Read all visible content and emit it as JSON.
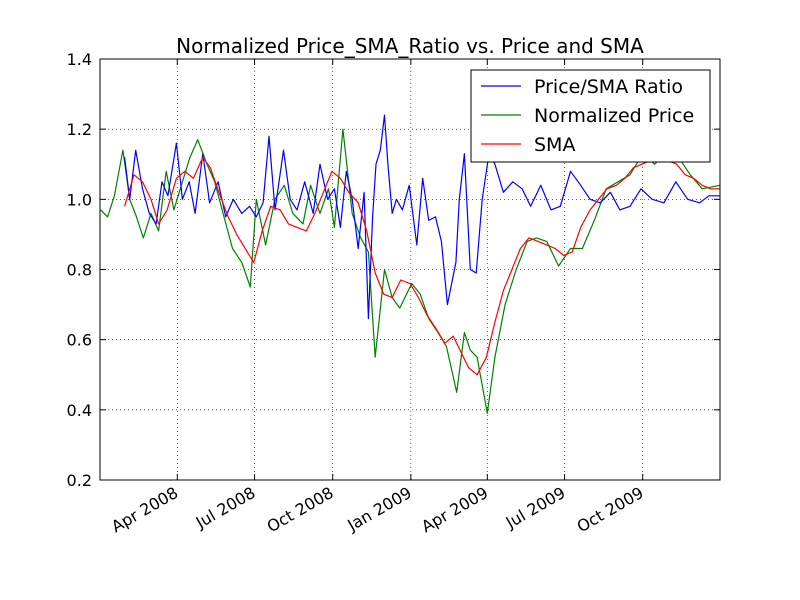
{
  "chart_data": {
    "type": "line",
    "title": "Normalized Price_SMA_Ratio vs. Price and SMA",
    "xlabel": "",
    "ylabel": "",
    "xlim": [
      "2008-01-01",
      "2009-12-31"
    ],
    "ylim": [
      0.2,
      1.4
    ],
    "y_ticks": [
      "0.2",
      "0.4",
      "0.6",
      "0.8",
      "1.0",
      "1.2",
      "1.4"
    ],
    "x_ticks": [
      {
        "date": "2008-04-01",
        "label": "Apr 2008"
      },
      {
        "date": "2008-07-01",
        "label": "Jul 2008"
      },
      {
        "date": "2008-10-01",
        "label": "Oct 2008"
      },
      {
        "date": "2009-01-01",
        "label": "Jan 2009"
      },
      {
        "date": "2009-04-01",
        "label": "Apr 2009"
      },
      {
        "date": "2009-07-01",
        "label": "Jul 2009"
      },
      {
        "date": "2009-10-01",
        "label": "Oct 2009"
      }
    ],
    "grid": true,
    "legend_position": "top-right",
    "series": [
      {
        "name": "Price/SMA Ratio",
        "color": "#0000ff",
        "x": [
          "2008-01-30",
          "2008-02-05",
          "2008-02-12",
          "2008-02-20",
          "2008-02-28",
          "2008-03-07",
          "2008-03-14",
          "2008-03-21",
          "2008-03-31",
          "2008-04-07",
          "2008-04-15",
          "2008-04-22",
          "2008-05-01",
          "2008-05-09",
          "2008-05-19",
          "2008-05-28",
          "2008-06-06",
          "2008-06-16",
          "2008-06-25",
          "2008-07-03",
          "2008-07-11",
          "2008-07-18",
          "2008-07-25",
          "2008-08-04",
          "2008-08-12",
          "2008-08-20",
          "2008-08-29",
          "2008-09-08",
          "2008-09-16",
          "2008-09-25",
          "2008-10-03",
          "2008-10-10",
          "2008-10-17",
          "2008-10-24",
          "2008-10-31",
          "2008-11-07",
          "2008-11-12",
          "2008-11-17",
          "2008-11-21",
          "2008-11-26",
          "2008-12-01",
          "2008-12-05",
          "2008-12-10",
          "2008-12-15",
          "2008-12-22",
          "2008-12-30",
          "2009-01-08",
          "2009-01-15",
          "2009-01-22",
          "2009-01-30",
          "2009-02-06",
          "2009-02-13",
          "2009-02-23",
          "2009-02-27",
          "2009-03-05",
          "2009-03-12",
          "2009-03-19",
          "2009-03-26",
          "2009-04-03",
          "2009-04-10",
          "2009-04-20",
          "2009-05-01",
          "2009-05-12",
          "2009-05-22",
          "2009-06-03",
          "2009-06-15",
          "2009-06-26",
          "2009-07-08",
          "2009-07-20",
          "2009-07-31",
          "2009-08-12",
          "2009-08-24",
          "2009-09-04",
          "2009-09-16",
          "2009-09-29",
          "2009-10-12",
          "2009-10-26",
          "2009-11-09",
          "2009-11-23",
          "2009-12-07",
          "2009-12-18",
          "2009-12-31"
        ],
        "values": [
          1.12,
          1.0,
          1.14,
          1.03,
          0.96,
          0.93,
          1.05,
          1.01,
          1.16,
          1.0,
          1.05,
          0.96,
          1.13,
          0.99,
          1.05,
          0.95,
          1.0,
          0.96,
          0.98,
          0.95,
          0.99,
          1.18,
          0.97,
          1.14,
          1.0,
          0.97,
          1.05,
          0.96,
          1.1,
          1.0,
          1.03,
          0.92,
          1.08,
          1.0,
          0.86,
          1.02,
          0.66,
          0.95,
          1.1,
          1.14,
          1.24,
          1.1,
          0.96,
          1.0,
          0.97,
          1.04,
          0.87,
          1.06,
          0.94,
          0.95,
          0.88,
          0.7,
          0.82,
          1.0,
          1.13,
          0.8,
          0.79,
          1.0,
          1.13,
          1.1,
          1.02,
          1.05,
          1.03,
          0.98,
          1.04,
          0.97,
          0.98,
          1.08,
          1.04,
          1.0,
          0.99,
          1.02,
          0.97,
          0.98,
          1.03,
          1.0,
          0.99,
          1.05,
          1.0,
          0.99,
          1.01,
          1.01
        ]
      },
      {
        "name": "Normalized Price",
        "color": "#008000",
        "x": [
          "2008-01-02",
          "2008-01-10",
          "2008-01-18",
          "2008-01-28",
          "2008-02-05",
          "2008-02-13",
          "2008-02-21",
          "2008-03-01",
          "2008-03-10",
          "2008-03-19",
          "2008-03-28",
          "2008-04-07",
          "2008-04-16",
          "2008-04-25",
          "2008-05-06",
          "2008-05-15",
          "2008-05-26",
          "2008-06-05",
          "2008-06-16",
          "2008-06-26",
          "2008-07-03",
          "2008-07-14",
          "2008-07-25",
          "2008-08-05",
          "2008-08-15",
          "2008-08-27",
          "2008-09-05",
          "2008-09-16",
          "2008-09-26",
          "2008-10-03",
          "2008-10-13",
          "2008-10-24",
          "2008-11-03",
          "2008-11-12",
          "2008-11-20",
          "2008-12-01",
          "2008-12-10",
          "2008-12-19",
          "2009-01-02",
          "2009-01-12",
          "2009-01-22",
          "2009-02-02",
          "2009-02-12",
          "2009-02-24",
          "2009-03-05",
          "2009-03-12",
          "2009-03-20",
          "2009-04-01",
          "2009-04-10",
          "2009-04-22",
          "2009-05-05",
          "2009-05-18",
          "2009-05-29",
          "2009-06-10",
          "2009-06-24",
          "2009-07-08",
          "2009-07-22",
          "2009-08-05",
          "2009-08-19",
          "2009-09-02",
          "2009-09-16",
          "2009-10-01",
          "2009-10-15",
          "2009-10-29",
          "2009-11-12",
          "2009-11-26",
          "2009-12-10",
          "2009-12-31"
        ],
        "values": [
          0.97,
          0.95,
          1.01,
          1.14,
          1.0,
          0.95,
          0.89,
          0.96,
          0.91,
          1.08,
          0.97,
          1.05,
          1.12,
          1.17,
          1.1,
          1.05,
          0.95,
          0.86,
          0.82,
          0.75,
          1.0,
          0.87,
          1.0,
          1.04,
          0.96,
          0.93,
          1.04,
          0.96,
          1.03,
          0.92,
          1.2,
          0.96,
          0.89,
          0.85,
          0.55,
          0.8,
          0.72,
          0.69,
          0.76,
          0.73,
          0.66,
          0.62,
          0.58,
          0.45,
          0.62,
          0.57,
          0.55,
          0.39,
          0.55,
          0.7,
          0.8,
          0.88,
          0.89,
          0.88,
          0.81,
          0.86,
          0.86,
          0.94,
          1.03,
          1.05,
          1.07,
          1.13,
          1.1,
          1.13,
          1.12,
          1.07,
          1.03,
          1.04
        ]
      },
      {
        "name": "SMA",
        "color": "#ff0000",
        "x": [
          "2008-01-30",
          "2008-02-10",
          "2008-02-20",
          "2008-03-01",
          "2008-03-10",
          "2008-03-20",
          "2008-03-31",
          "2008-04-10",
          "2008-04-20",
          "2008-05-01",
          "2008-05-10",
          "2008-05-20",
          "2008-05-31",
          "2008-06-10",
          "2008-06-20",
          "2008-06-30",
          "2008-07-10",
          "2008-07-20",
          "2008-07-31",
          "2008-08-10",
          "2008-08-20",
          "2008-08-31",
          "2008-09-10",
          "2008-09-20",
          "2008-09-30",
          "2008-10-10",
          "2008-10-20",
          "2008-10-31",
          "2008-11-10",
          "2008-11-20",
          "2008-11-30",
          "2008-12-10",
          "2008-12-20",
          "2008-12-31",
          "2009-01-10",
          "2009-01-20",
          "2009-01-31",
          "2009-02-10",
          "2009-02-20",
          "2009-02-28",
          "2009-03-10",
          "2009-03-20",
          "2009-03-31",
          "2009-04-10",
          "2009-04-20",
          "2009-04-30",
          "2009-05-10",
          "2009-05-20",
          "2009-05-31",
          "2009-06-10",
          "2009-06-20",
          "2009-06-30",
          "2009-07-10",
          "2009-07-20",
          "2009-07-31",
          "2009-08-10",
          "2009-08-20",
          "2009-08-31",
          "2009-09-10",
          "2009-09-20",
          "2009-09-30",
          "2009-10-10",
          "2009-10-20",
          "2009-10-31",
          "2009-11-10",
          "2009-11-20",
          "2009-11-30",
          "2009-12-10",
          "2009-12-20",
          "2009-12-31"
        ],
        "values": [
          0.98,
          1.07,
          1.05,
          1.0,
          0.93,
          0.97,
          1.06,
          1.08,
          1.06,
          1.12,
          1.09,
          1.02,
          0.95,
          0.9,
          0.86,
          0.82,
          0.91,
          0.98,
          0.97,
          0.93,
          0.92,
          0.91,
          0.96,
          1.02,
          1.08,
          1.06,
          1.02,
          0.99,
          0.91,
          0.79,
          0.73,
          0.72,
          0.77,
          0.76,
          0.72,
          0.67,
          0.63,
          0.59,
          0.61,
          0.57,
          0.52,
          0.5,
          0.55,
          0.65,
          0.74,
          0.8,
          0.86,
          0.89,
          0.88,
          0.87,
          0.86,
          0.84,
          0.85,
          0.92,
          0.97,
          1.0,
          1.03,
          1.04,
          1.06,
          1.09,
          1.1,
          1.11,
          1.11,
          1.11,
          1.1,
          1.07,
          1.06,
          1.04,
          1.03,
          1.03
        ]
      }
    ]
  }
}
